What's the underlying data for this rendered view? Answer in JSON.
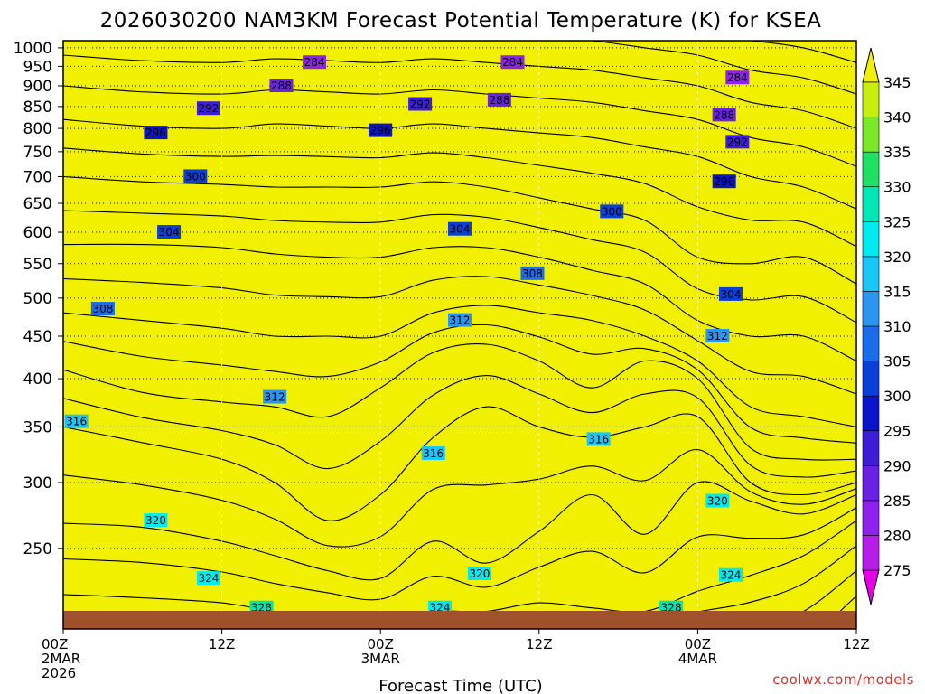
{
  "chart_data": {
    "type": "heatmap",
    "title": "2026030200 NAM3KM Forecast Potential Temperature (K) for KSEA",
    "xlabel": "Forecast Time (UTC)",
    "ylabel": "",
    "credit": "coolwx.com/models",
    "x_range_hours": [
      0,
      60
    ],
    "x_ticks": [
      {
        "hour": 0,
        "lines": [
          "00Z",
          "2MAR",
          "2026"
        ]
      },
      {
        "hour": 12,
        "lines": [
          "12Z"
        ]
      },
      {
        "hour": 24,
        "lines": [
          "00Z",
          "3MAR"
        ]
      },
      {
        "hour": 36,
        "lines": [
          "12Z"
        ]
      },
      {
        "hour": 48,
        "lines": [
          "00Z",
          "4MAR"
        ]
      },
      {
        "hour": 60,
        "lines": [
          "12Z"
        ]
      }
    ],
    "y_scale": "log-pressure",
    "y_range_hpa": [
      1020,
      200
    ],
    "y_ticks": [
      "250",
      "300",
      "350",
      "400",
      "450",
      "500",
      "550",
      "600",
      "650",
      "700",
      "750",
      "800",
      "850",
      "900",
      "950",
      "1000"
    ],
    "colorbar": {
      "levels": [
        275,
        280,
        285,
        290,
        295,
        300,
        305,
        310,
        315,
        320,
        325,
        330,
        335,
        340,
        345
      ],
      "labels": [
        "275",
        "280",
        "285",
        "290",
        "295",
        "300",
        "305",
        "310",
        "315",
        "320",
        "325",
        "330",
        "335",
        "340",
        "345"
      ],
      "colors": [
        "#e600e6",
        "#b81ce8",
        "#8f22ea",
        "#6a21e4",
        "#3d1ed6",
        "#0a14c8",
        "#0a3fd8",
        "#1a6ce8",
        "#2a96f2",
        "#1ac6f8",
        "#00eaf0",
        "#00e6b4",
        "#1ee064",
        "#7ce628",
        "#c8ee10",
        "#f0f000"
      ]
    },
    "ground_color": "#a0522d",
    "profiles": [
      {
        "hour": 0,
        "levels_hpa": {
          "296": 820,
          "300": 700,
          "304": 580,
          "308": 480,
          "312": 410,
          "316": 350,
          "320": 268,
          "324": 220,
          "328": 200
        }
      },
      {
        "hour": 6,
        "levels_hpa": {
          "296": 805,
          "300": 690,
          "304": 580,
          "308": 470,
          "312": 385,
          "316": 335,
          "320": 265,
          "324": 218,
          "328": 198
        }
      },
      {
        "hour": 12,
        "levels_hpa": {
          "296": 800,
          "300": 685,
          "304": 575,
          "308": 460,
          "312": 375,
          "316": 320,
          "320": 255,
          "324": 215,
          "328": 198
        }
      },
      {
        "hour": 16,
        "levels_hpa": {
          "296": 810,
          "300": 680,
          "304": 565,
          "308": 450,
          "312": 370,
          "316": 300,
          "320": 245,
          "324": 210,
          "328": 196
        }
      },
      {
        "hour": 20,
        "levels_hpa": {
          "296": 805,
          "300": 680,
          "304": 560,
          "308": 450,
          "312": 360,
          "316": 270,
          "320": 235,
          "324": 208,
          "328": 196
        }
      },
      {
        "hour": 24,
        "levels_hpa": {
          "296": 800,
          "300": 680,
          "304": 560,
          "308": 450,
          "312": 390,
          "316": 290,
          "320": 230,
          "324": 205,
          "328": 194
        }
      },
      {
        "hour": 28,
        "levels_hpa": {
          "296": 810,
          "300": 690,
          "304": 575,
          "308": 480,
          "312": 430,
          "316": 340,
          "320": 255,
          "324": 210,
          "328": 194
        }
      },
      {
        "hour": 32,
        "levels_hpa": {
          "296": 800,
          "300": 680,
          "304": 575,
          "308": 490,
          "312": 440,
          "316": 370,
          "320": 240,
          "324": 210,
          "328": 196
        }
      },
      {
        "hour": 36,
        "levels_hpa": {
          "296": 790,
          "300": 660,
          "304": 560,
          "308": 480,
          "312": 420,
          "316": 350,
          "320": 262,
          "324": 215,
          "328": 200
        }
      },
      {
        "hour": 40,
        "levels_hpa": {
          "296": 780,
          "300": 640,
          "304": 540,
          "308": 470,
          "312": 390,
          "316": 340,
          "320": 290,
          "324": 212,
          "328": 198
        }
      },
      {
        "hour": 44,
        "levels_hpa": {
          "296": 760,
          "300": 620,
          "304": 520,
          "308": 450,
          "312": 420,
          "316": 350,
          "320": 260,
          "324": 210,
          "328": 196
        }
      },
      {
        "hour": 48,
        "levels_hpa": {
          "296": 740,
          "300": 560,
          "304": 470,
          "308": 420,
          "312": 400,
          "316": 360,
          "320": 300,
          "324": 222,
          "328": 198
        }
      },
      {
        "hour": 52,
        "levels_hpa": {
          "296": 700,
          "300": 550,
          "304": 450,
          "308": 370,
          "312": 330,
          "316": 300,
          "320": 285,
          "324": 232,
          "328": 200
        }
      },
      {
        "hour": 56,
        "levels_hpa": {
          "296": 680,
          "300": 560,
          "304": 450,
          "308": 360,
          "312": 320,
          "316": 290,
          "320": 275,
          "324": 245,
          "328": 210
        }
      },
      {
        "hour": 60,
        "levels_hpa": {
          "296": 640,
          "300": 520,
          "304": 420,
          "308": 350,
          "312": 320,
          "316": 300,
          "320": 290,
          "324": 270,
          "328": 235
        }
      }
    ],
    "contour_labels": [
      {
        "text": "328",
        "hour": 15.0,
        "hpa": 212
      },
      {
        "text": "324",
        "hour": 28.5,
        "hpa": 212
      },
      {
        "text": "328",
        "hour": 46.0,
        "hpa": 212
      },
      {
        "text": "324",
        "hour": 11.0,
        "hpa": 230
      },
      {
        "text": "320",
        "hour": 31.5,
        "hpa": 233
      },
      {
        "text": "324",
        "hour": 50.5,
        "hpa": 232
      },
      {
        "text": "320",
        "hour": 7.0,
        "hpa": 270
      },
      {
        "text": "320",
        "hour": 49.5,
        "hpa": 285
      },
      {
        "text": "316",
        "hour": 28.0,
        "hpa": 325
      },
      {
        "text": "316",
        "hour": 40.5,
        "hpa": 338
      },
      {
        "text": "316",
        "hour": 1.0,
        "hpa": 355
      },
      {
        "text": "312",
        "hour": 16.0,
        "hpa": 380
      },
      {
        "text": "312",
        "hour": 30.0,
        "hpa": 470
      },
      {
        "text": "312",
        "hour": 49.5,
        "hpa": 450
      },
      {
        "text": "308",
        "hour": 3.0,
        "hpa": 485
      },
      {
        "text": "304",
        "hour": 50.5,
        "hpa": 505
      },
      {
        "text": "308",
        "hour": 35.5,
        "hpa": 535
      },
      {
        "text": "304",
        "hour": 8.0,
        "hpa": 600
      },
      {
        "text": "304",
        "hour": 30.0,
        "hpa": 605
      },
      {
        "text": "300",
        "hour": 41.5,
        "hpa": 635
      },
      {
        "text": "296",
        "hour": 50.0,
        "hpa": 690
      },
      {
        "text": "300",
        "hour": 10.0,
        "hpa": 700
      },
      {
        "text": "292",
        "hour": 51.0,
        "hpa": 770
      },
      {
        "text": "296",
        "hour": 7.0,
        "hpa": 790
      },
      {
        "text": "296",
        "hour": 24.0,
        "hpa": 795
      },
      {
        "text": "288",
        "hour": 50.0,
        "hpa": 830
      },
      {
        "text": "292",
        "hour": 11.0,
        "hpa": 845
      },
      {
        "text": "292",
        "hour": 27.0,
        "hpa": 855
      },
      {
        "text": "288",
        "hour": 33.0,
        "hpa": 865
      },
      {
        "text": "288",
        "hour": 16.5,
        "hpa": 900
      },
      {
        "text": "284",
        "hour": 51.0,
        "hpa": 920
      },
      {
        "text": "284",
        "hour": 34.0,
        "hpa": 960
      },
      {
        "text": "284",
        "hour": 19.0,
        "hpa": 960
      }
    ]
  }
}
